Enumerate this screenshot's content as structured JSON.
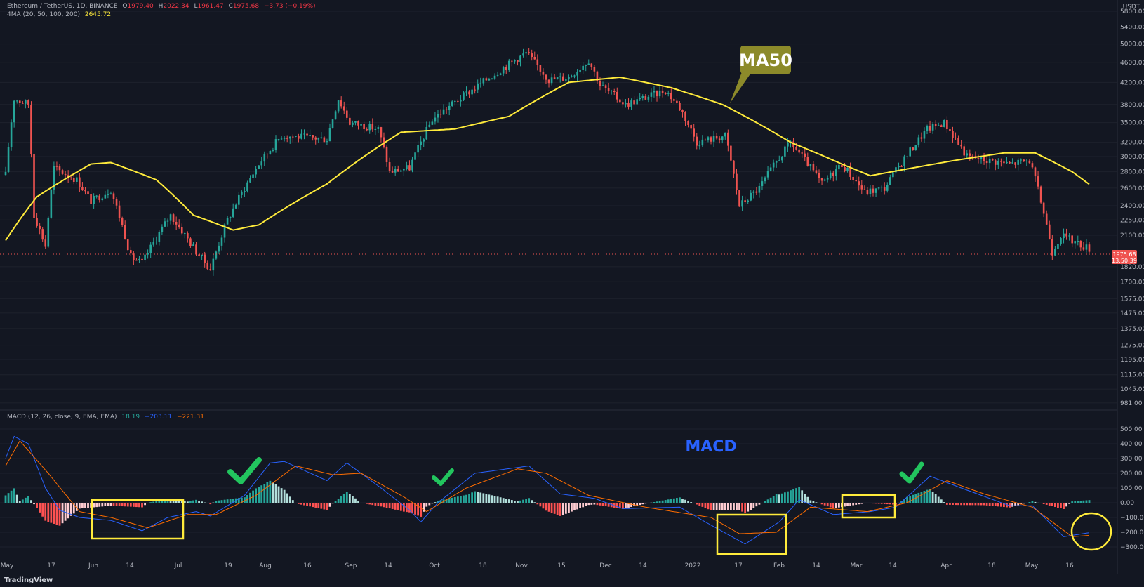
{
  "legend": {
    "symbol": "Ethereum / TetherUS, 1D, BINANCE",
    "open_label": "O",
    "open": "1979.40",
    "high_label": "H",
    "high": "2022.34",
    "low_label": "L",
    "low": "1961.47",
    "close_label": "C",
    "close": "1975.68",
    "change": "−3.73 (−0.19%)",
    "ma_label": "4MA (20, 50, 100, 200)",
    "ma_value": "2645.72",
    "macd_label": "MACD (12, 26, close, 9, EMA, EMA)",
    "macd_hist": "18.19",
    "macd_line": "−203.11",
    "macd_signal": "−221.31"
  },
  "price_tag": {
    "price": "1975.68",
    "countdown": "13:50:39"
  },
  "annotations": {
    "ma50": "MA50",
    "macd": "MACD"
  },
  "footer": {
    "brand": "TradingView"
  },
  "colors": {
    "bg": "#131722",
    "up": "#26a69a",
    "down": "#ef5350",
    "ma50": "#ffeb3b",
    "macd": "#2962ff",
    "signal": "#ff6d00",
    "annotation_box": "#ffeb3b",
    "check": "#22c55e",
    "callout": "#8c8a2a"
  },
  "chart_data": [
    {
      "type": "candlestick",
      "title": "Ethereum / TetherUS, 1D, BINANCE",
      "axis_currency": "USDT",
      "y_scale": "log",
      "ylim": [
        950,
        5950
      ],
      "y_ticks": [
        "5800.00",
        "5400.00",
        "5000.00",
        "4600.00",
        "4200.00",
        "3800.00",
        "3500.00",
        "3200.00",
        "3000.00",
        "2800.00",
        "2600.00",
        "2400.00",
        "2250.00",
        "2100.00",
        "1820.00",
        "1700.00",
        "1575.00",
        "1475.00",
        "1375.00",
        "1275.00",
        "1195.00",
        "1115.00",
        "1045.00",
        "981.00"
      ],
      "x_ticks": [
        "May",
        "17",
        "Jun",
        "14",
        "Jul",
        "19",
        "Aug",
        "16",
        "Sep",
        "14",
        "Oct",
        "18",
        "Nov",
        "15",
        "Dec",
        "14",
        "2022",
        "17",
        "Feb",
        "14",
        "Mar",
        "14",
        "Apr",
        "18",
        "May",
        "16"
      ],
      "close_keypoints": [
        {
          "date": "2021-05-09",
          "close": 2760
        },
        {
          "date": "2021-05-12",
          "close": 3900
        },
        {
          "date": "2021-05-17",
          "close": 3800
        },
        {
          "date": "2021-05-19",
          "close": 2300
        },
        {
          "date": "2021-05-23",
          "close": 2000
        },
        {
          "date": "2021-05-26",
          "close": 2850
        },
        {
          "date": "2021-06-03",
          "close": 2700
        },
        {
          "date": "2021-06-08",
          "close": 2450
        },
        {
          "date": "2021-06-15",
          "close": 2580
        },
        {
          "date": "2021-06-22",
          "close": 1900
        },
        {
          "date": "2021-06-26",
          "close": 1850
        },
        {
          "date": "2021-07-06",
          "close": 2300
        },
        {
          "date": "2021-07-15",
          "close": 1950
        },
        {
          "date": "2021-07-20",
          "close": 1800
        },
        {
          "date": "2021-07-26",
          "close": 2250
        },
        {
          "date": "2021-08-06",
          "close": 2900
        },
        {
          "date": "2021-08-14",
          "close": 3300
        },
        {
          "date": "2021-08-30",
          "close": 3250
        },
        {
          "date": "2021-09-03",
          "close": 3900
        },
        {
          "date": "2021-09-07",
          "close": 3500
        },
        {
          "date": "2021-09-17",
          "close": 3400
        },
        {
          "date": "2021-09-21",
          "close": 2800
        },
        {
          "date": "2021-09-28",
          "close": 2850
        },
        {
          "date": "2021-10-06",
          "close": 3550
        },
        {
          "date": "2021-10-21",
          "close": 4100
        },
        {
          "date": "2021-11-08",
          "close": 4800
        },
        {
          "date": "2021-11-16",
          "close": 4250
        },
        {
          "date": "2021-11-23",
          "close": 4300
        },
        {
          "date": "2021-11-30",
          "close": 4650
        },
        {
          "date": "2021-12-04",
          "close": 4150
        },
        {
          "date": "2021-12-13",
          "close": 3800
        },
        {
          "date": "2021-12-27",
          "close": 4050
        },
        {
          "date": "2022-01-01",
          "close": 3750
        },
        {
          "date": "2022-01-07",
          "close": 3200
        },
        {
          "date": "2022-01-17",
          "close": 3300
        },
        {
          "date": "2022-01-22",
          "close": 2400
        },
        {
          "date": "2022-01-29",
          "close": 2600
        },
        {
          "date": "2022-02-09",
          "close": 3200
        },
        {
          "date": "2022-02-20",
          "close": 2650
        },
        {
          "date": "2022-02-27",
          "close": 2900
        },
        {
          "date": "2022-03-07",
          "close": 2550
        },
        {
          "date": "2022-03-14",
          "close": 2600
        },
        {
          "date": "2022-03-29",
          "close": 3400
        },
        {
          "date": "2022-04-04",
          "close": 3500
        },
        {
          "date": "2022-04-12",
          "close": 3000
        },
        {
          "date": "2022-04-27",
          "close": 2900
        },
        {
          "date": "2022-05-04",
          "close": 2950
        },
        {
          "date": "2022-05-12",
          "close": 1950
        },
        {
          "date": "2022-05-15",
          "close": 2100
        },
        {
          "date": "2022-05-25",
          "close": 1975.68
        }
      ],
      "series": [
        {
          "name": "MA50",
          "keypoints": [
            {
              "date": "2021-05-09",
              "value": 2050
            },
            {
              "date": "2021-05-20",
              "value": 2500
            },
            {
              "date": "2021-06-08",
              "value": 2900
            },
            {
              "date": "2021-06-15",
              "value": 2920
            },
            {
              "date": "2021-07-01",
              "value": 2700
            },
            {
              "date": "2021-07-14",
              "value": 2300
            },
            {
              "date": "2021-07-28",
              "value": 2150
            },
            {
              "date": "2021-08-06",
              "value": 2200
            },
            {
              "date": "2021-08-30",
              "value": 2650
            },
            {
              "date": "2021-09-25",
              "value": 3350
            },
            {
              "date": "2021-10-14",
              "value": 3400
            },
            {
              "date": "2021-11-02",
              "value": 3600
            },
            {
              "date": "2021-11-23",
              "value": 4200
            },
            {
              "date": "2021-12-11",
              "value": 4300
            },
            {
              "date": "2021-12-29",
              "value": 4100
            },
            {
              "date": "2022-01-16",
              "value": 3800
            },
            {
              "date": "2022-02-09",
              "value": 3200
            },
            {
              "date": "2022-02-27",
              "value": 2900
            },
            {
              "date": "2022-03-09",
              "value": 2750
            },
            {
              "date": "2022-04-08",
              "value": 2950
            },
            {
              "date": "2022-04-25",
              "value": 3050
            },
            {
              "date": "2022-05-06",
              "value": 3050
            },
            {
              "date": "2022-05-19",
              "value": 2800
            },
            {
              "date": "2022-05-25",
              "value": 2645.72
            }
          ]
        }
      ]
    },
    {
      "type": "line",
      "title": "MACD (12, 26, close, 9, EMA, EMA)",
      "ylim": [
        -400,
        600
      ],
      "y_ticks": [
        "500.00",
        "400.00",
        "300.00",
        "200.00",
        "100.00",
        "0.00",
        "−100.00",
        "−200.00",
        "−300.00"
      ],
      "series": [
        {
          "name": "MACD",
          "keypoints": [
            {
              "date": "2021-05-09",
              "value": 300
            },
            {
              "date": "2021-05-12",
              "value": 450
            },
            {
              "date": "2021-05-17",
              "value": 400
            },
            {
              "date": "2021-05-23",
              "value": 100
            },
            {
              "date": "2021-05-28",
              "value": -50
            },
            {
              "date": "2021-06-04",
              "value": -100
            },
            {
              "date": "2021-06-15",
              "value": -120
            },
            {
              "date": "2021-06-26",
              "value": -190
            },
            {
              "date": "2021-07-05",
              "value": -100
            },
            {
              "date": "2021-07-15",
              "value": -60
            },
            {
              "date": "2021-07-20",
              "value": -90
            },
            {
              "date": "2021-08-01",
              "value": 50
            },
            {
              "date": "2021-08-10",
              "value": 270
            },
            {
              "date": "2021-08-15",
              "value": 280
            },
            {
              "date": "2021-08-30",
              "value": 150
            },
            {
              "date": "2021-09-06",
              "value": 270
            },
            {
              "date": "2021-09-18",
              "value": 100
            },
            {
              "date": "2021-09-28",
              "value": -50
            },
            {
              "date": "2021-10-02",
              "value": -130
            },
            {
              "date": "2021-10-08",
              "value": 0
            },
            {
              "date": "2021-10-21",
              "value": 200
            },
            {
              "date": "2021-11-09",
              "value": 250
            },
            {
              "date": "2021-11-20",
              "value": 60
            },
            {
              "date": "2021-12-02",
              "value": 30
            },
            {
              "date": "2021-12-12",
              "value": -40
            },
            {
              "date": "2022-01-01",
              "value": -30
            },
            {
              "date": "2022-01-10",
              "value": -130
            },
            {
              "date": "2022-01-24",
              "value": -280
            },
            {
              "date": "2022-02-05",
              "value": -130
            },
            {
              "date": "2022-02-12",
              "value": 20
            },
            {
              "date": "2022-02-24",
              "value": -80
            },
            {
              "date": "2022-03-09",
              "value": -60
            },
            {
              "date": "2022-03-18",
              "value": -30
            },
            {
              "date": "2022-03-30",
              "value": 180
            },
            {
              "date": "2022-04-10",
              "value": 100
            },
            {
              "date": "2022-04-27",
              "value": -20
            },
            {
              "date": "2022-05-05",
              "value": -20
            },
            {
              "date": "2022-05-16",
              "value": -230
            },
            {
              "date": "2022-05-25",
              "value": -203.11
            }
          ]
        },
        {
          "name": "Signal",
          "keypoints": [
            {
              "date": "2021-05-09",
              "value": 250
            },
            {
              "date": "2021-05-14",
              "value": 420
            },
            {
              "date": "2021-05-24",
              "value": 200
            },
            {
              "date": "2021-06-04",
              "value": -60
            },
            {
              "date": "2021-06-15",
              "value": -100
            },
            {
              "date": "2021-06-28",
              "value": -170
            },
            {
              "date": "2021-07-12",
              "value": -80
            },
            {
              "date": "2021-07-22",
              "value": -80
            },
            {
              "date": "2021-08-05",
              "value": 50
            },
            {
              "date": "2021-08-19",
              "value": 250
            },
            {
              "date": "2021-09-01",
              "value": 190
            },
            {
              "date": "2021-09-11",
              "value": 200
            },
            {
              "date": "2021-09-26",
              "value": 40
            },
            {
              "date": "2021-10-04",
              "value": -60
            },
            {
              "date": "2021-10-18",
              "value": 100
            },
            {
              "date": "2021-11-05",
              "value": 230
            },
            {
              "date": "2021-11-15",
              "value": 200
            },
            {
              "date": "2021-11-30",
              "value": 50
            },
            {
              "date": "2021-12-20",
              "value": -30
            },
            {
              "date": "2022-01-12",
              "value": -100
            },
            {
              "date": "2022-01-22",
              "value": -210
            },
            {
              "date": "2022-02-04",
              "value": -200
            },
            {
              "date": "2022-02-16",
              "value": -30
            },
            {
              "date": "2022-03-08",
              "value": -60
            },
            {
              "date": "2022-03-22",
              "value": 0
            },
            {
              "date": "2022-04-05",
              "value": 150
            },
            {
              "date": "2022-04-18",
              "value": 60
            },
            {
              "date": "2022-05-05",
              "value": -30
            },
            {
              "date": "2022-05-19",
              "value": -230
            },
            {
              "date": "2022-05-25",
              "value": -221.31
            }
          ]
        }
      ]
    }
  ]
}
